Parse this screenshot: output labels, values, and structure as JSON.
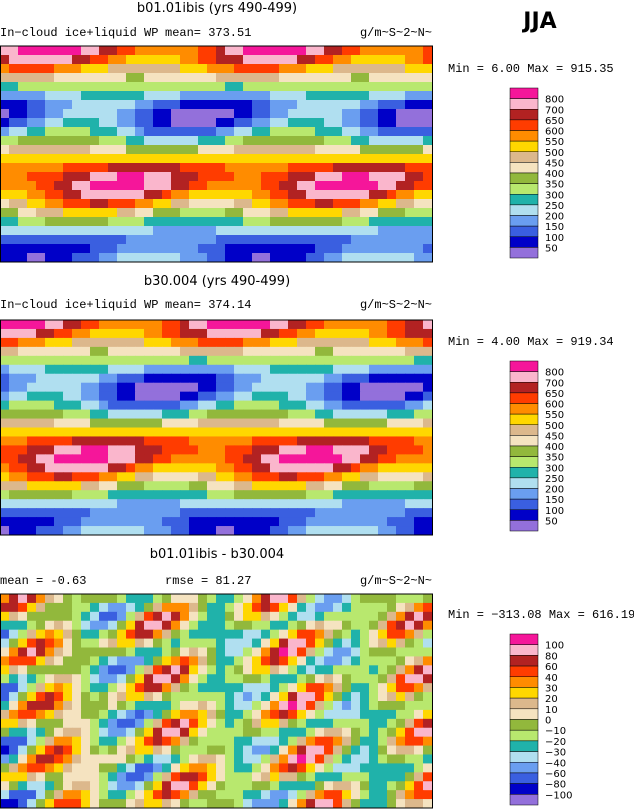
{
  "season": "JJA",
  "panels": [
    {
      "title": "b01.01ibis (yrs 490-499)",
      "header": [
        "In−cloud ice+liquid WP",
        "mean=  373.51"
      ],
      "units": "g/m~S~2~N~",
      "range": "Min =   6.00 Max = 915.35",
      "colorbar": {
        "labels": [
          "800",
          "700",
          "650",
          "600",
          "550",
          "500",
          "450",
          "400",
          "350",
          "300",
          "250",
          "200",
          "150",
          "100",
          "50"
        ],
        "colors": [
          "#f5169a",
          "#fab6cc",
          "#b22222",
          "#ff3c00",
          "#ff8c00",
          "#ffd700",
          "#dcb88c",
          "#f5e3c0",
          "#92b83c",
          "#b8e86e",
          "#20b2aa",
          "#b0dff0",
          "#6a9ef0",
          "#3a5fe0",
          "#0000c8",
          "#9370db"
        ]
      }
    },
    {
      "title": "b30.004 (yrs 490-499)",
      "header": [
        "In−cloud ice+liquid WP",
        "mean=  374.14"
      ],
      "units": "g/m~S~2~N~",
      "range": "Min =    4.00 Max = 919.34",
      "colorbar": {
        "labels": [
          "800",
          "700",
          "650",
          "600",
          "550",
          "500",
          "450",
          "400",
          "350",
          "300",
          "250",
          "200",
          "150",
          "100",
          "50"
        ],
        "colors": [
          "#f5169a",
          "#fab6cc",
          "#b22222",
          "#ff3c00",
          "#ff8c00",
          "#ffd700",
          "#dcb88c",
          "#f5e3c0",
          "#92b83c",
          "#b8e86e",
          "#20b2aa",
          "#b0dff0",
          "#6a9ef0",
          "#3a5fe0",
          "#0000c8",
          "#9370db"
        ]
      }
    },
    {
      "title": "b01.01ibis - b30.004",
      "header": [
        "mean =   -0.63",
        "rmse =   81.27"
      ],
      "units": "g/m~S~2~N~",
      "range": "Min = −313.08 Max = 616.19",
      "colorbar": {
        "labels": [
          "100",
          "80",
          "60",
          "40",
          "30",
          "20",
          "10",
          "0",
          "−10",
          "−20",
          "−30",
          "−40",
          "−60",
          "−80",
          "−100"
        ],
        "colors": [
          "#f5169a",
          "#fab6cc",
          "#b22222",
          "#ff3c00",
          "#ff8c00",
          "#ffd700",
          "#dcb88c",
          "#f5e3c0",
          "#92b83c",
          "#b8e86e",
          "#20b2aa",
          "#b0dff0",
          "#6a9ef0",
          "#3a5fe0",
          "#0000c8",
          "#9370db"
        ]
      }
    }
  ]
}
